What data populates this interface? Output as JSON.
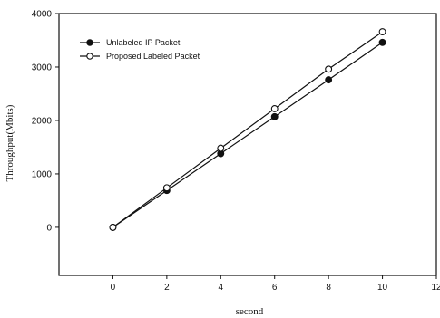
{
  "chart_data": {
    "type": "line",
    "xlabel": "second",
    "ylabel": "Throughput(Mbits)",
    "xlim": [
      -2,
      12
    ],
    "ylim": [
      -900,
      4000
    ],
    "xticks": [
      0,
      2,
      4,
      6,
      8,
      10,
      12
    ],
    "yticks": [
      0,
      1000,
      2000,
      3000,
      4000
    ],
    "grid": false,
    "legend_position": "top-left",
    "series": [
      {
        "name": "Unlabeled IP Packet",
        "marker": "filled-circle",
        "color": "#111111",
        "x": [
          0,
          2,
          4,
          6,
          8,
          10
        ],
        "y": [
          0,
          690,
          1380,
          2070,
          2760,
          3460
        ]
      },
      {
        "name": "Proposed Labeled Packet",
        "marker": "open-circle",
        "color": "#111111",
        "x": [
          0,
          2,
          4,
          6,
          8,
          10
        ],
        "y": [
          0,
          740,
          1480,
          2220,
          2960,
          3660
        ]
      }
    ]
  }
}
